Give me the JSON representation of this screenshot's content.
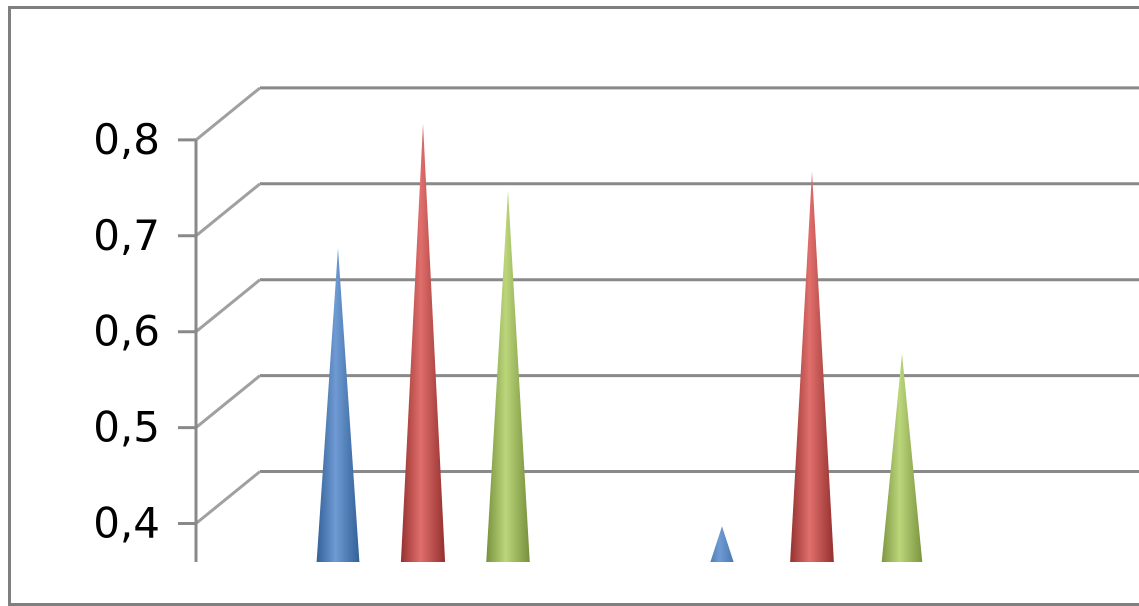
{
  "chart_data": {
    "type": "bar",
    "style": "3d-cone",
    "grid": true,
    "y_ticks": [
      "0,4",
      "0,5",
      "0,6",
      "0,7",
      "0,8"
    ],
    "y_tick_values": [
      0.4,
      0.5,
      0.6,
      0.7,
      0.8
    ],
    "ylim": [
      0.3,
      0.8
    ],
    "categories": [
      "",
      ""
    ],
    "series": [
      {
        "color": "#4f81bd",
        "values": [
          0.66,
          0.37
        ]
      },
      {
        "color": "#c0504d",
        "values": [
          0.79,
          0.74
        ]
      },
      {
        "color": "#9bbb59",
        "values": [
          0.72,
          0.55
        ]
      }
    ]
  }
}
